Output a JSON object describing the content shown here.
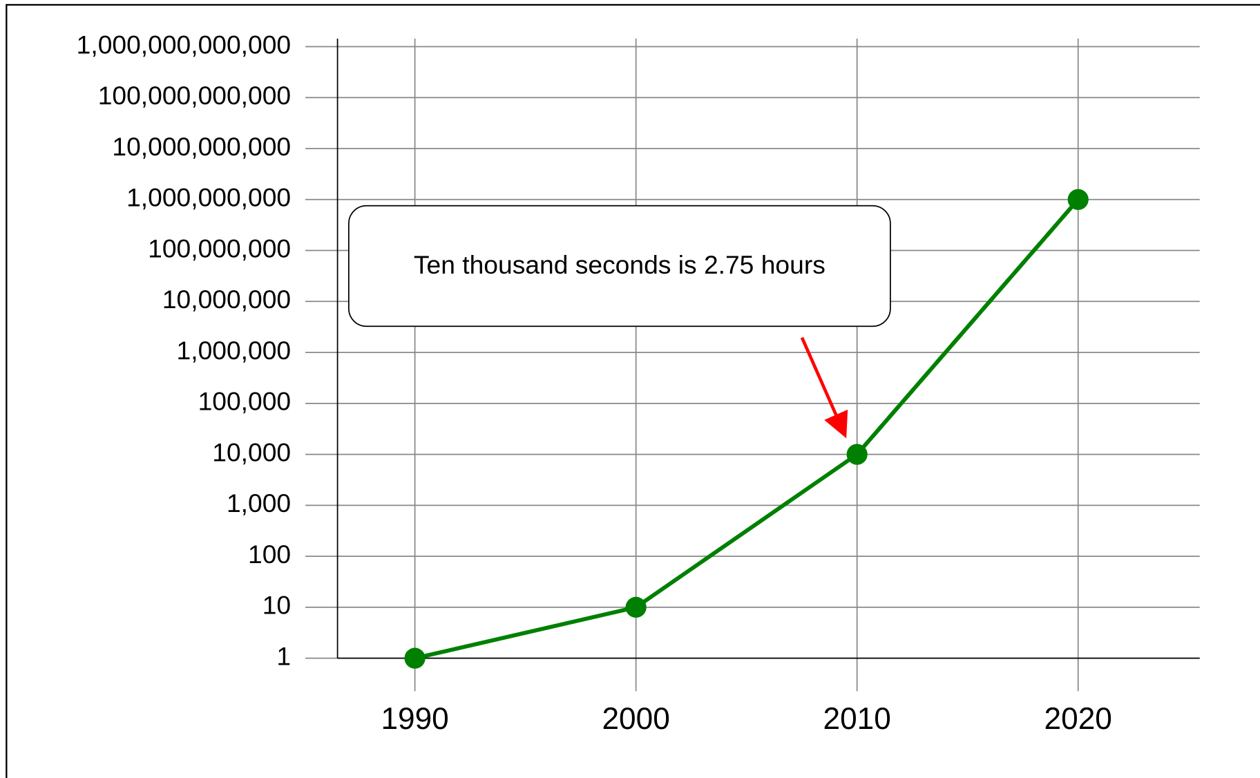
{
  "chart_data": {
    "type": "line",
    "log_y": true,
    "grid": true,
    "x": [
      1990,
      2000,
      2010,
      2020
    ],
    "series": [
      {
        "color": "#008000",
        "values": [
          1,
          10,
          10000,
          1000000000
        ],
        "markers": true,
        "dashed": false
      },
      {
        "color": "#008000",
        "values": [
          null,
          null,
          10000,
          1000000000
        ],
        "markers": false,
        "dashed": true
      }
    ],
    "xlim": [
      1986.5,
      2025.5
    ],
    "xticks": [
      1990,
      2000,
      2010,
      2020
    ],
    "ylim": [
      1,
      1000000000000
    ],
    "yticks": [
      1,
      10,
      100,
      {
        "value": 1000,
        "label": "1,000"
      },
      {
        "value": 10000,
        "label": "10,000"
      },
      {
        "value": 100000,
        "label": "100,000"
      },
      {
        "value": 1000000,
        "label": "1,000,000"
      },
      {
        "value": 10000000,
        "label": "10,000,000"
      },
      {
        "value": 100000000,
        "label": "100,000,000"
      },
      {
        "value": 1000000000,
        "label": "1,000,000,000"
      },
      {
        "value": 10000000000,
        "label": "10,000,000,000"
      },
      {
        "value": 100000000000,
        "label": "100,000,000,000"
      },
      {
        "value": 1000000000000,
        "label": "1,000,000,000,000"
      }
    ],
    "annotation": "Ten thousand seconds is 2.75 hours"
  }
}
